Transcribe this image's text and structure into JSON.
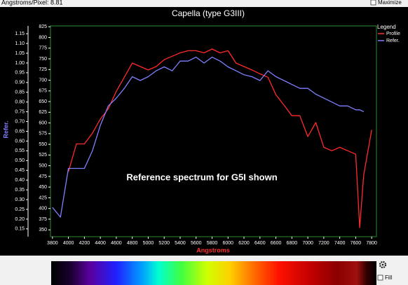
{
  "toolbar": {
    "scale_text": "Angstroms/Pixel: 8.81",
    "maximize_label": "Maximize"
  },
  "controls": {
    "fill_label": "Fill"
  },
  "chart_data": {
    "type": "line",
    "title": "Capella (type G3III)",
    "x_label": "Angstroms",
    "y_label": "Refer.",
    "annotation": "Reference spectrum for G5I shown",
    "legend_title": "Legend",
    "legend": "top-right",
    "x": [
      3800,
      3900,
      4000,
      4100,
      4200,
      4300,
      4400,
      4500,
      4600,
      4700,
      4800,
      4900,
      5000,
      5100,
      5200,
      5300,
      5400,
      5500,
      5600,
      5700,
      5800,
      5900,
      6000,
      6100,
      6200,
      6300,
      6400,
      6500,
      6600,
      6700,
      6800,
      6900,
      7000,
      7100,
      7200,
      7300,
      7400,
      7500,
      7600,
      7650,
      7700,
      7800
    ],
    "series": [
      {
        "name": "Profile",
        "color": "#ff2a2a",
        "axis": "y2",
        "values": [
          null,
          null,
          486,
          551,
          551,
          576,
          609,
          633,
          674,
          707,
          740,
          732,
          724,
          732,
          748,
          756,
          764,
          769,
          769,
          764,
          773,
          764,
          769,
          740,
          732,
          724,
          715,
          707,
          666,
          642,
          617,
          617,
          568,
          601,
          543,
          535,
          543,
          535,
          527,
          355,
          478,
          584
        ]
      },
      {
        "name": "Refer.",
        "color": "#8080ff",
        "values": [
          0.26,
          0.21,
          0.46,
          0.46,
          0.46,
          0.55,
          0.68,
          0.78,
          0.82,
          0.87,
          0.93,
          0.91,
          0.93,
          0.96,
          0.98,
          0.96,
          1.01,
          1.01,
          1.03,
          1.0,
          1.03,
          1.01,
          0.98,
          0.96,
          0.94,
          0.93,
          0.91,
          0.96,
          0.93,
          0.91,
          0.89,
          0.87,
          0.87,
          0.84,
          0.82,
          0.8,
          0.78,
          0.78,
          0.76,
          0.76,
          0.75,
          null
        ]
      }
    ],
    "xlim": [
      3775,
      7860
    ],
    "xticks": [
      3800,
      4000,
      4200,
      4400,
      4600,
      4800,
      5000,
      5200,
      5400,
      5600,
      5800,
      6000,
      6200,
      6400,
      6600,
      6800,
      7000,
      7200,
      7400,
      7600,
      7800
    ],
    "ylim": [
      0.11,
      1.19
    ],
    "yticks": [
      0.15,
      {
        "value": 0.2,
        "label": "0.20"
      },
      0.25,
      {
        "value": 0.3,
        "label": "0.30"
      },
      0.35,
      {
        "value": 0.4,
        "label": "0.40"
      },
      0.45,
      {
        "value": 0.5,
        "label": "0.50"
      },
      0.55,
      {
        "value": 0.6,
        "label": "0.60"
      },
      0.65,
      {
        "value": 0.7,
        "label": "0.70"
      },
      0.75,
      {
        "value": 0.8,
        "label": "0.80"
      },
      0.85,
      {
        "value": 0.9,
        "label": "0.90"
      },
      0.95,
      {
        "value": 1.0,
        "label": "1.00"
      },
      1.05,
      {
        "value": 1.1,
        "label": "1.10"
      },
      1.15
    ],
    "y2lim": [
      334,
      827
    ],
    "y2ticks": [
      350,
      375,
      400,
      425,
      450,
      475,
      500,
      525,
      550,
      575,
      600,
      625,
      650,
      675,
      700,
      725,
      750,
      775,
      800,
      825
    ],
    "grid": false
  }
}
